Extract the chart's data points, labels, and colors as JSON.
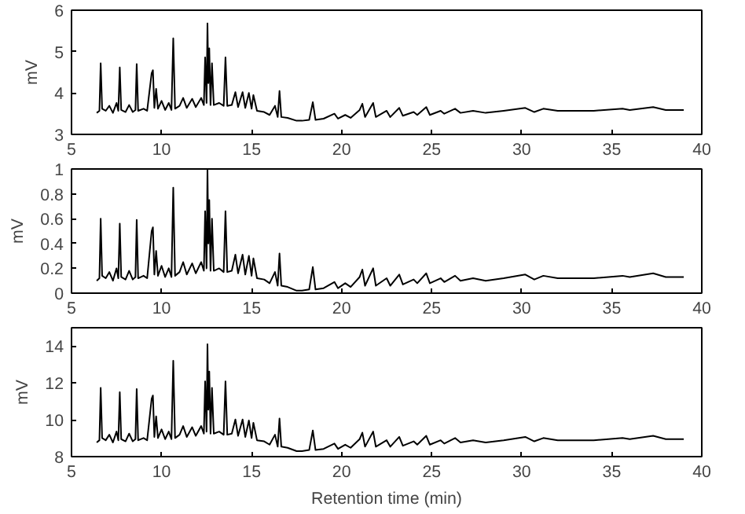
{
  "chart_data": [
    {
      "type": "line",
      "ylabel": "mV",
      "xlim": [
        5,
        40
      ],
      "xticks": [
        5,
        10,
        15,
        20,
        25,
        30,
        35,
        40
      ],
      "ylim": [
        3,
        6
      ],
      "yticks": [
        3,
        4,
        5,
        6
      ],
      "series": [
        {
          "color": "#000000",
          "x": [
            6.4,
            6.55,
            6.62,
            6.7,
            6.9,
            7.1,
            7.3,
            7.5,
            7.6,
            7.68,
            7.76,
            8.0,
            8.2,
            8.4,
            8.55,
            8.62,
            8.7,
            9.0,
            9.2,
            9.45,
            9.52,
            9.6,
            9.7,
            9.8,
            10.0,
            10.2,
            10.4,
            10.55,
            10.65,
            10.75,
            11.0,
            11.2,
            11.4,
            11.7,
            11.9,
            12.2,
            12.35,
            12.42,
            12.5,
            12.55,
            12.6,
            12.65,
            12.72,
            12.8,
            12.9,
            13.2,
            13.45,
            13.55,
            13.65,
            13.9,
            14.1,
            14.25,
            14.5,
            14.65,
            14.85,
            15.0,
            15.1,
            15.3,
            15.7,
            16.0,
            16.3,
            16.45,
            16.55,
            16.65,
            17.0,
            17.5,
            17.8,
            18.2,
            18.4,
            18.55,
            19.0,
            19.6,
            19.8,
            20.2,
            20.5,
            21.0,
            21.15,
            21.3,
            21.75,
            21.9,
            22.5,
            22.7,
            23.2,
            23.4,
            24.0,
            24.2,
            24.7,
            24.9,
            25.5,
            25.7,
            26.3,
            26.6,
            27.3,
            28.0,
            29.0,
            30.2,
            30.7,
            31.2,
            32.0,
            33.0,
            34.0,
            35.6,
            36.0,
            37.3,
            38.0,
            39.0
          ],
          "values": [
            3.52,
            3.57,
            4.72,
            3.62,
            3.57,
            3.69,
            3.52,
            3.76,
            3.57,
            4.62,
            3.59,
            3.54,
            3.71,
            3.54,
            3.59,
            4.7,
            3.57,
            3.62,
            3.57,
            4.48,
            4.55,
            3.64,
            4.1,
            3.62,
            3.81,
            3.59,
            3.76,
            3.59,
            5.32,
            3.62,
            3.69,
            3.88,
            3.64,
            3.86,
            3.66,
            3.88,
            3.71,
            4.86,
            3.76,
            5.68,
            4.24,
            5.08,
            3.71,
            4.72,
            3.71,
            3.76,
            3.69,
            4.86,
            3.69,
            3.71,
            4.02,
            3.66,
            4.02,
            3.64,
            4.0,
            3.62,
            3.95,
            3.57,
            3.54,
            3.47,
            3.69,
            3.42,
            4.05,
            3.42,
            3.4,
            3.33,
            3.33,
            3.35,
            3.78,
            3.35,
            3.38,
            3.5,
            3.38,
            3.47,
            3.4,
            3.59,
            3.74,
            3.42,
            3.76,
            3.42,
            3.57,
            3.42,
            3.64,
            3.45,
            3.54,
            3.47,
            3.66,
            3.47,
            3.57,
            3.5,
            3.62,
            3.52,
            3.57,
            3.52,
            3.57,
            3.64,
            3.54,
            3.62,
            3.57,
            3.57,
            3.57,
            3.62,
            3.59,
            3.66,
            3.59,
            3.59
          ]
        }
      ]
    },
    {
      "type": "line",
      "ylabel": "mV",
      "xlim": [
        5,
        40
      ],
      "xticks": [
        5,
        10,
        15,
        20,
        25,
        30,
        35,
        40
      ],
      "ylim": [
        0,
        1
      ],
      "yticks": [
        0,
        0.2,
        0.4,
        0.6,
        0.8,
        1
      ],
      "series": [
        {
          "color": "#000000",
          "x": [
            6.4,
            6.55,
            6.62,
            6.7,
            6.9,
            7.1,
            7.3,
            7.5,
            7.6,
            7.68,
            7.76,
            8.0,
            8.2,
            8.4,
            8.55,
            8.62,
            8.7,
            9.0,
            9.2,
            9.45,
            9.52,
            9.6,
            9.7,
            9.8,
            10.0,
            10.2,
            10.4,
            10.55,
            10.65,
            10.75,
            11.0,
            11.2,
            11.4,
            11.7,
            11.9,
            12.2,
            12.35,
            12.42,
            12.5,
            12.55,
            12.6,
            12.65,
            12.72,
            12.8,
            12.9,
            13.2,
            13.45,
            13.55,
            13.65,
            13.9,
            14.1,
            14.25,
            14.5,
            14.65,
            14.85,
            15.0,
            15.1,
            15.3,
            15.7,
            16.0,
            16.3,
            16.45,
            16.55,
            16.65,
            17.0,
            17.5,
            17.8,
            18.2,
            18.4,
            18.55,
            19.0,
            19.6,
            19.8,
            20.2,
            20.5,
            21.0,
            21.15,
            21.3,
            21.75,
            21.9,
            22.5,
            22.7,
            23.2,
            23.4,
            24.0,
            24.2,
            24.7,
            24.9,
            25.5,
            25.7,
            26.3,
            26.6,
            27.3,
            28.0,
            29.0,
            30.2,
            30.7,
            31.2,
            32.0,
            33.0,
            34.0,
            35.6,
            36.0,
            37.3,
            38.0,
            39.0
          ],
          "values": [
            0.1,
            0.12,
            0.6,
            0.14,
            0.12,
            0.17,
            0.1,
            0.2,
            0.12,
            0.56,
            0.13,
            0.11,
            0.18,
            0.11,
            0.13,
            0.59,
            0.12,
            0.14,
            0.12,
            0.5,
            0.53,
            0.15,
            0.34,
            0.14,
            0.22,
            0.13,
            0.2,
            0.13,
            0.85,
            0.14,
            0.17,
            0.25,
            0.15,
            0.24,
            0.16,
            0.25,
            0.18,
            0.66,
            0.2,
            1.0,
            0.4,
            0.75,
            0.18,
            0.6,
            0.18,
            0.2,
            0.17,
            0.66,
            0.17,
            0.18,
            0.31,
            0.16,
            0.31,
            0.15,
            0.3,
            0.14,
            0.28,
            0.12,
            0.11,
            0.08,
            0.17,
            0.06,
            0.32,
            0.06,
            0.05,
            0.02,
            0.02,
            0.03,
            0.21,
            0.03,
            0.04,
            0.09,
            0.04,
            0.08,
            0.05,
            0.13,
            0.19,
            0.06,
            0.2,
            0.06,
            0.12,
            0.06,
            0.15,
            0.07,
            0.11,
            0.08,
            0.16,
            0.08,
            0.12,
            0.09,
            0.14,
            0.1,
            0.12,
            0.1,
            0.12,
            0.15,
            0.11,
            0.14,
            0.12,
            0.12,
            0.12,
            0.14,
            0.13,
            0.16,
            0.13,
            0.13
          ]
        }
      ]
    },
    {
      "type": "line",
      "xlabel": "Retention time (min)",
      "ylabel": "mV",
      "xlim": [
        5,
        40
      ],
      "xticks": [
        5,
        10,
        15,
        20,
        25,
        30,
        35,
        40
      ],
      "ylim": [
        8,
        15
      ],
      "yticks": [
        8,
        10,
        12,
        14
      ],
      "series": [
        {
          "color": "#000000",
          "x": [
            6.4,
            6.55,
            6.62,
            6.7,
            6.9,
            7.1,
            7.3,
            7.5,
            7.6,
            7.68,
            7.76,
            8.0,
            8.2,
            8.4,
            8.55,
            8.62,
            8.7,
            9.0,
            9.2,
            9.45,
            9.52,
            9.6,
            9.7,
            9.8,
            10.0,
            10.2,
            10.4,
            10.55,
            10.65,
            10.75,
            11.0,
            11.2,
            11.4,
            11.7,
            11.9,
            12.2,
            12.35,
            12.42,
            12.5,
            12.55,
            12.6,
            12.65,
            12.72,
            12.8,
            12.9,
            13.2,
            13.45,
            13.55,
            13.65,
            13.9,
            14.1,
            14.25,
            14.5,
            14.65,
            14.85,
            15.0,
            15.1,
            15.3,
            15.7,
            16.0,
            16.3,
            16.45,
            16.55,
            16.65,
            17.0,
            17.5,
            17.8,
            18.2,
            18.4,
            18.55,
            19.0,
            19.6,
            19.8,
            20.2,
            20.5,
            21.0,
            21.15,
            21.3,
            21.75,
            21.9,
            22.5,
            22.7,
            23.2,
            23.4,
            24.0,
            24.2,
            24.7,
            24.9,
            25.5,
            25.7,
            26.3,
            26.6,
            27.3,
            28.0,
            29.0,
            30.2,
            30.7,
            31.2,
            32.0,
            33.0,
            34.0,
            35.6,
            36.0,
            37.3,
            38.0,
            39.0
          ],
          "values": [
            8.77,
            8.89,
            11.73,
            9.01,
            8.89,
            9.19,
            8.77,
            9.36,
            8.89,
            11.5,
            8.95,
            8.83,
            9.25,
            8.83,
            8.95,
            11.67,
            8.89,
            9.01,
            8.89,
            11.14,
            11.32,
            9.07,
            10.19,
            9.01,
            9.48,
            8.95,
            9.36,
            8.95,
            13.21,
            9.01,
            9.19,
            9.66,
            9.07,
            9.6,
            9.13,
            9.66,
            9.25,
            12.09,
            9.36,
            14.1,
            10.55,
            12.62,
            9.25,
            11.73,
            9.25,
            9.36,
            9.19,
            12.09,
            9.19,
            9.25,
            10.02,
            9.13,
            10.02,
            9.07,
            9.96,
            9.01,
            9.84,
            8.89,
            8.83,
            8.65,
            9.19,
            8.54,
            10.07,
            8.54,
            8.48,
            8.3,
            8.3,
            8.36,
            9.42,
            8.36,
            8.42,
            8.71,
            8.42,
            8.65,
            8.48,
            8.95,
            9.3,
            8.54,
            9.36,
            8.54,
            8.89,
            8.54,
            9.07,
            8.59,
            8.83,
            8.65,
            9.13,
            8.65,
            8.89,
            8.71,
            9.01,
            8.77,
            8.89,
            8.77,
            8.89,
            9.07,
            8.83,
            9.01,
            8.89,
            8.89,
            8.89,
            9.01,
            8.95,
            9.13,
            8.95,
            8.95
          ]
        }
      ]
    }
  ]
}
